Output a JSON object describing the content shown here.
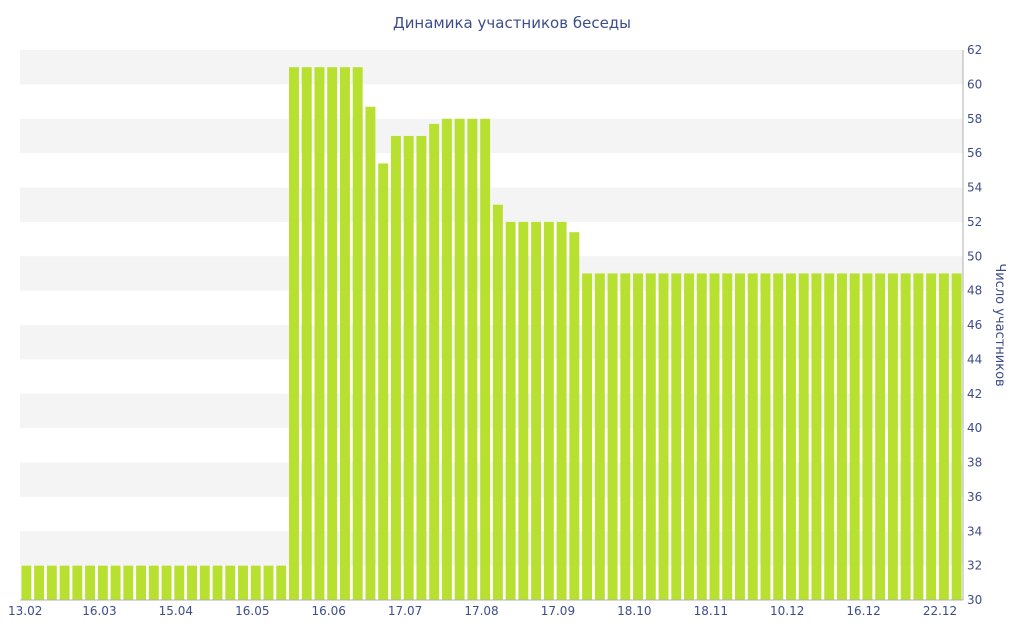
{
  "chart_data": {
    "type": "bar",
    "title": "Динамика участников беседы",
    "xlabel": "",
    "ylabel": "Число участников",
    "ylim": [
      30,
      62
    ],
    "yticks": [
      30,
      32,
      34,
      36,
      38,
      40,
      42,
      44,
      46,
      48,
      50,
      52,
      54,
      56,
      58,
      60,
      62
    ],
    "x_tick_labels": [
      "13.02",
      "16.03",
      "15.04",
      "16.05",
      "16.06",
      "17.07",
      "17.08",
      "17.09",
      "18.10",
      "18.11",
      "10.12",
      "16.12",
      "22.12"
    ],
    "y_axis_position": "right",
    "grid": "horizontal bands",
    "values": [
      32,
      32,
      32,
      32,
      32,
      32,
      32,
      32,
      32,
      32,
      32,
      32,
      32,
      32,
      32,
      32,
      32,
      32,
      32,
      32,
      32,
      61,
      61,
      61,
      61,
      61,
      61,
      58.7,
      55.4,
      57,
      57,
      57,
      57.7,
      58,
      58,
      58,
      58,
      53,
      52,
      52,
      52,
      52,
      52,
      51.4,
      49,
      49,
      49,
      49,
      49,
      49,
      49,
      49,
      49,
      49,
      49,
      49,
      49,
      49,
      49,
      49,
      49,
      49,
      49,
      49,
      49,
      49,
      49,
      49,
      49,
      49,
      49,
      49,
      49,
      49
    ]
  },
  "colors": {
    "bar": "#b8e030",
    "band": "#f4f4f4",
    "text": "#3d4d8a"
  }
}
